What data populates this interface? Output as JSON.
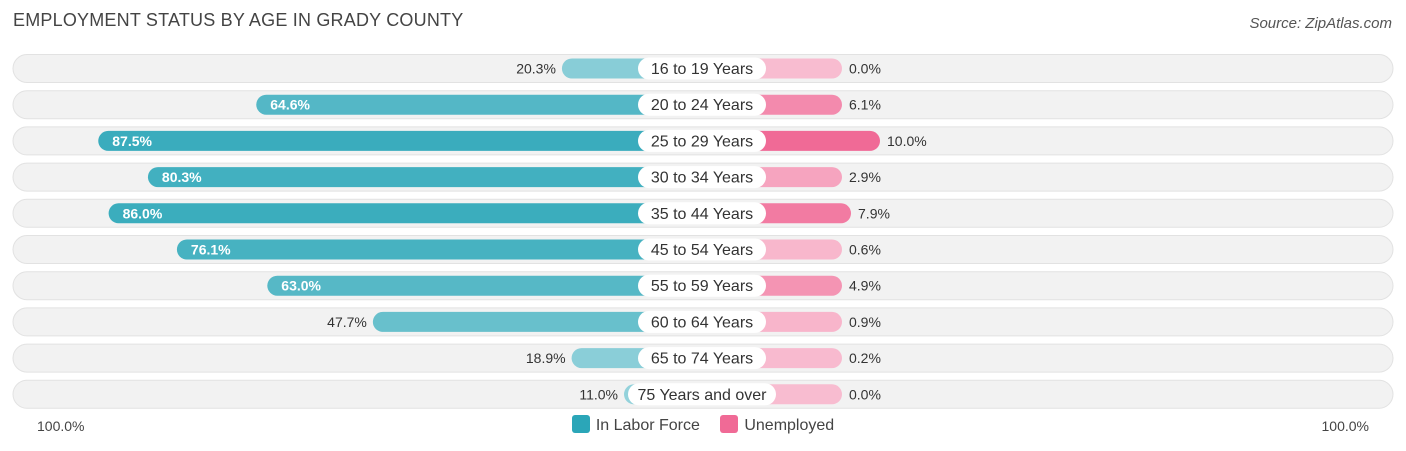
{
  "chart_data": {
    "type": "bar",
    "title": "EMPLOYMENT STATUS BY AGE IN GRADY COUNTY",
    "source": "Source: ZipAtlas.com",
    "categories": [
      "16 to 19 Years",
      "20 to 24 Years",
      "25 to 29 Years",
      "30 to 34 Years",
      "35 to 44 Years",
      "45 to 54 Years",
      "55 to 59 Years",
      "60 to 64 Years",
      "65 to 74 Years",
      "75 Years and over"
    ],
    "series": [
      {
        "name": "In Labor Force",
        "color": "#2ba6b8",
        "values": [
          20.3,
          64.6,
          87.5,
          80.3,
          86.0,
          76.1,
          63.0,
          47.7,
          18.9,
          11.0
        ],
        "labels": [
          "20.3%",
          "64.6%",
          "87.5%",
          "80.3%",
          "86.0%",
          "76.1%",
          "63.0%",
          "47.7%",
          "18.9%",
          "11.0%"
        ]
      },
      {
        "name": "Unemployed",
        "color": "#f06a96",
        "values": [
          0.0,
          6.1,
          10.0,
          2.9,
          7.9,
          0.6,
          4.9,
          0.9,
          0.2,
          0.0
        ],
        "labels": [
          "0.0%",
          "6.1%",
          "10.0%",
          "2.9%",
          "7.9%",
          "0.6%",
          "4.9%",
          "0.9%",
          "0.2%",
          "0.0%"
        ]
      }
    ],
    "axis_left_label": "100.0%",
    "axis_right_label": "100.0%",
    "xlim": [
      -100,
      100
    ]
  }
}
